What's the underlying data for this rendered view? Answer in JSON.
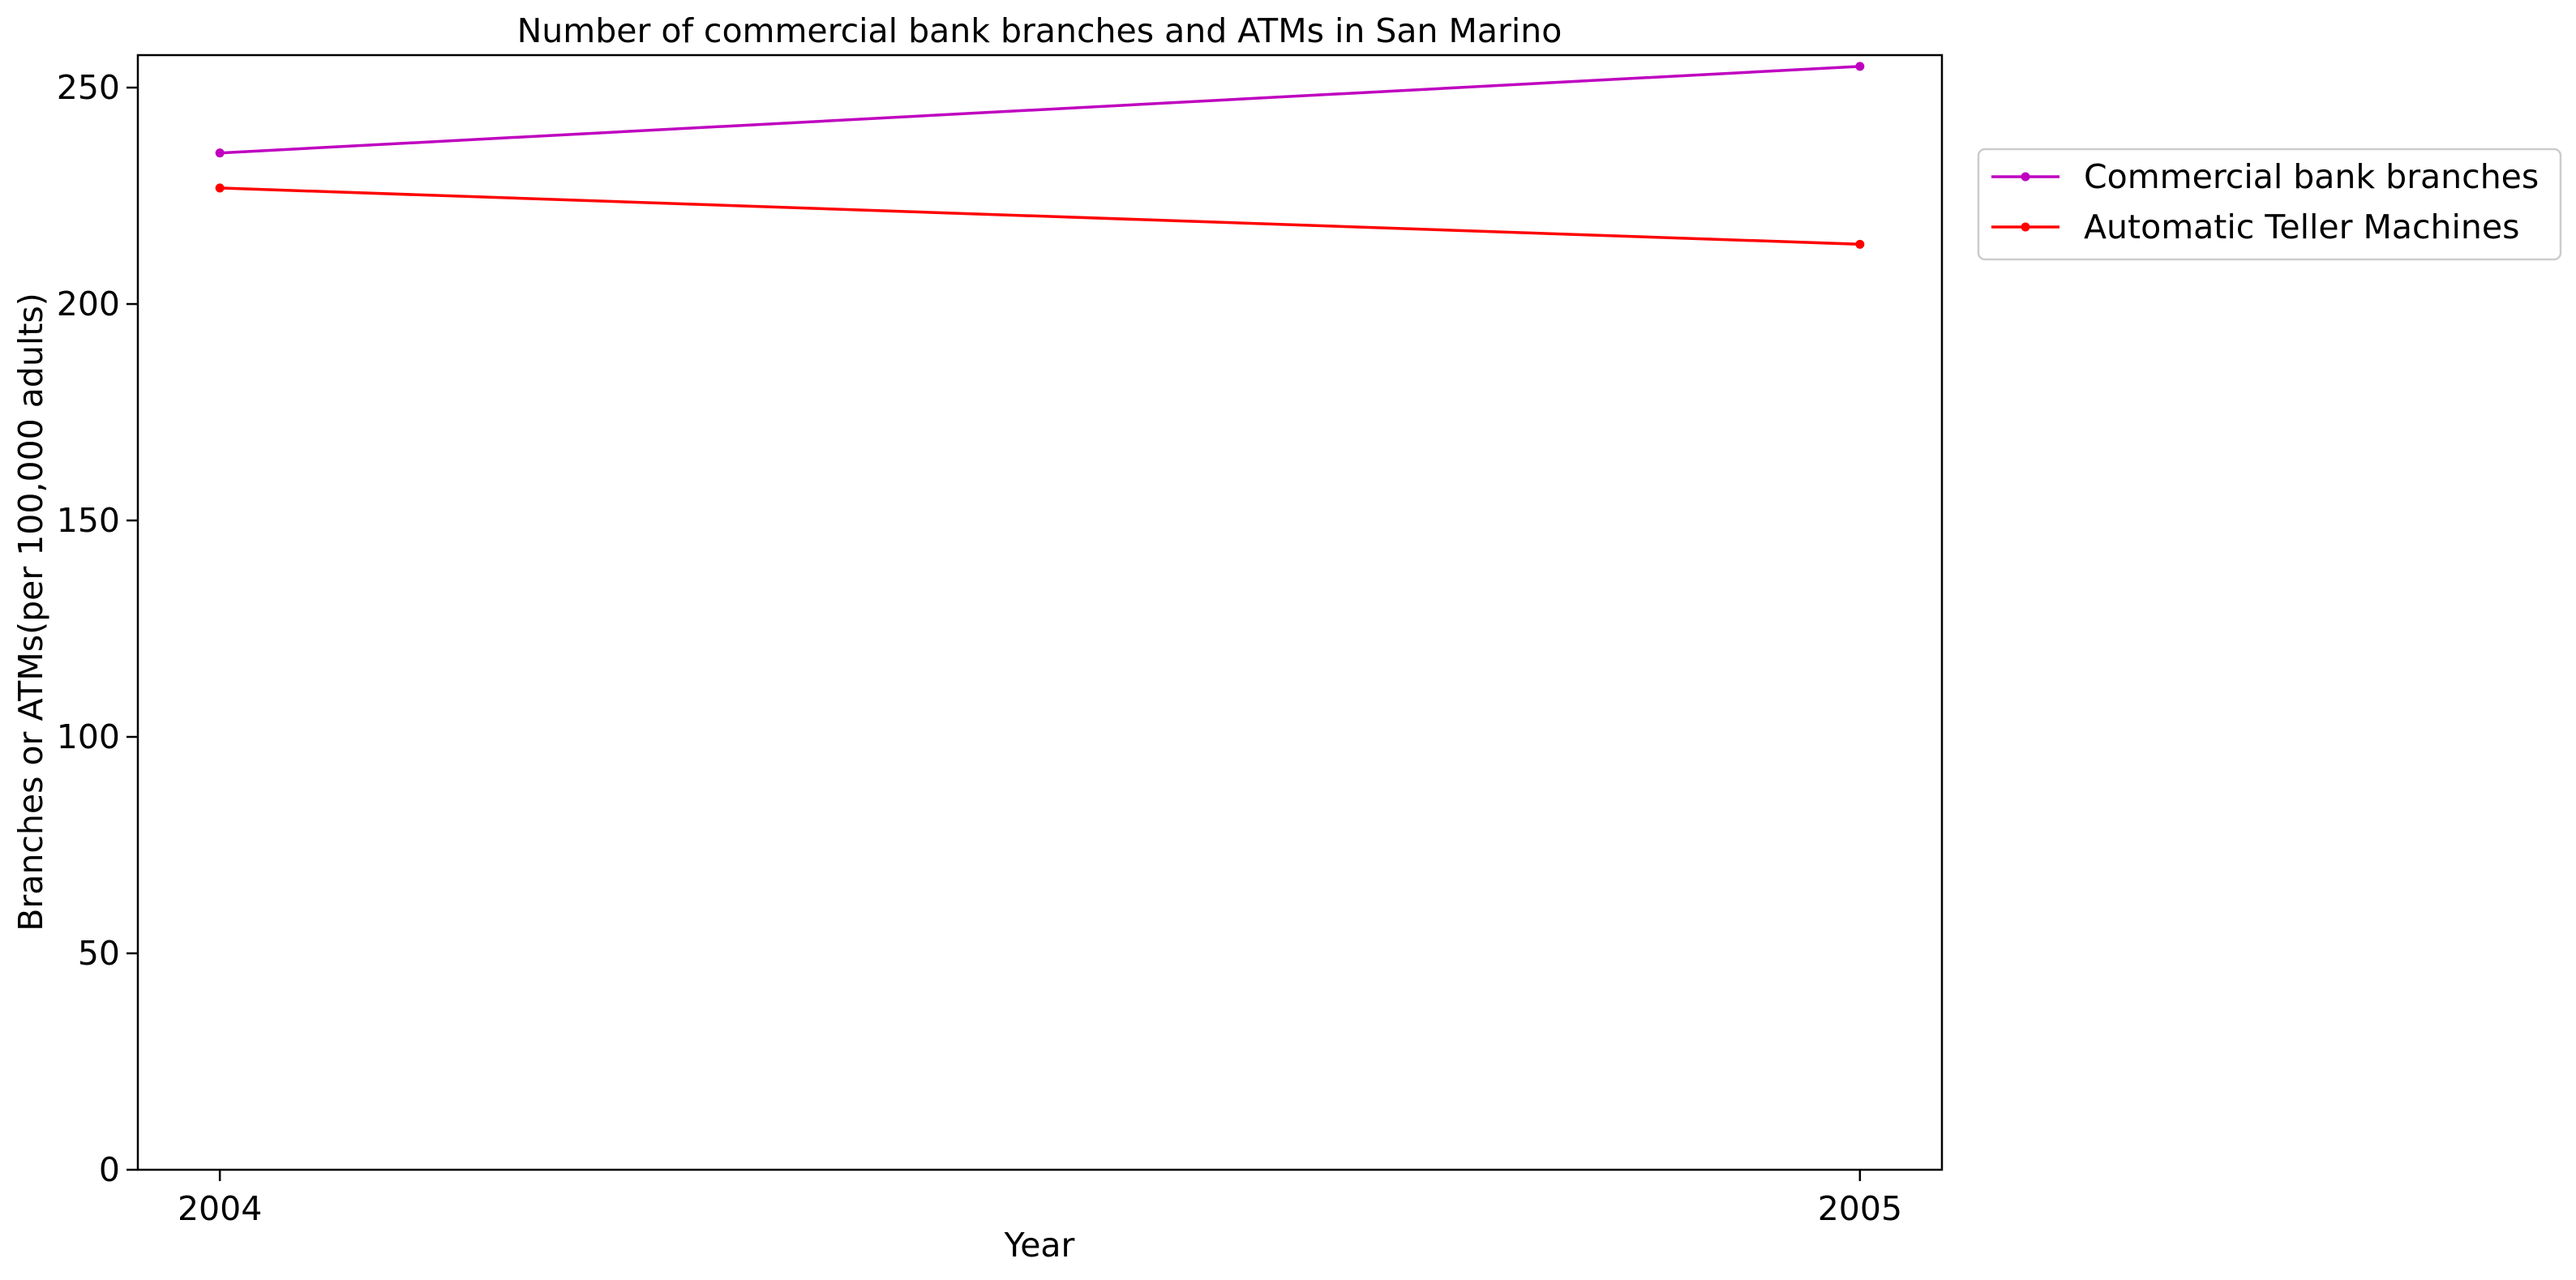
{
  "chart_data": {
    "type": "line",
    "title": "Number of commercial bank branches and ATMs in San Marino",
    "xlabel": "Year",
    "ylabel": "Branches or ATMs(per 100,000 adults)",
    "x": [
      "2004",
      "2005"
    ],
    "xlim": [
      2003.95,
      2005.05
    ],
    "ylim": [
      0,
      257.5
    ],
    "yticks": [
      0,
      50,
      100,
      150,
      200,
      250
    ],
    "grid": false,
    "legend_position": "outside right, top",
    "series": [
      {
        "name": "Commercial bank branches",
        "color": "#bf00bf",
        "values": [
          234.9,
          254.9
        ]
      },
      {
        "name": "Automatic Teller Machines",
        "color": "#ff0000",
        "values": [
          226.8,
          213.8
        ]
      }
    ]
  }
}
